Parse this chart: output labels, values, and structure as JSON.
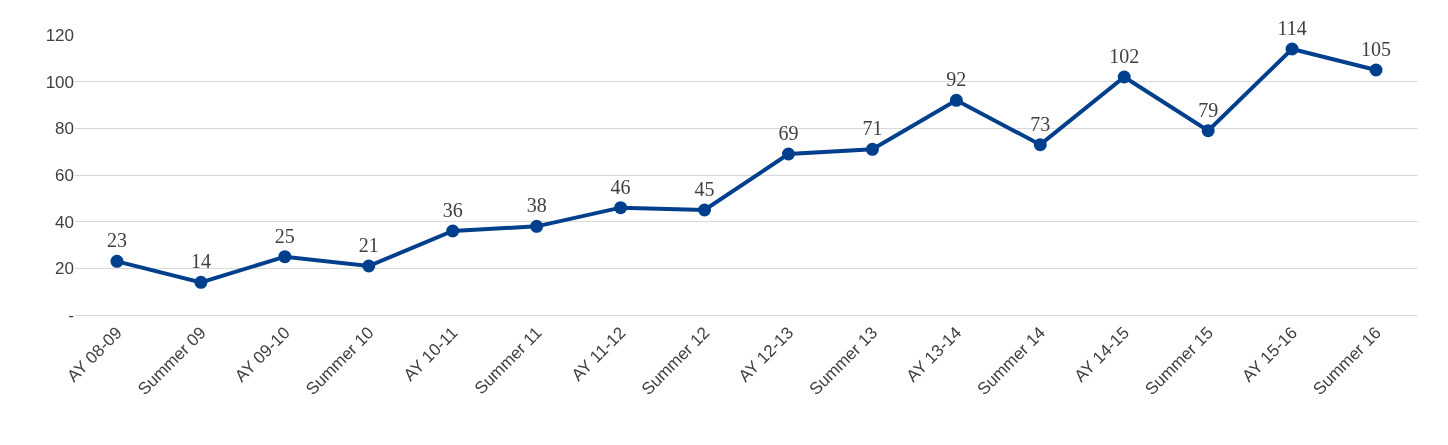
{
  "chart_data": {
    "type": "line",
    "categories": [
      "AY 08-09",
      "Summer 09",
      "AY 09-10",
      "Summer 10",
      "AY 10-11",
      "Summer 11",
      "AY 11-12",
      "Summer 12",
      "AY 12-13",
      "Summer 13",
      "AY 13-14",
      "Summer 14",
      "AY 14-15",
      "Summer 15",
      "AY 15-16",
      "Summer 16"
    ],
    "series": [
      {
        "color": "#003f8c",
        "values": [
          23,
          14,
          25,
          21,
          36,
          38,
          46,
          45,
          69,
          71,
          92,
          73,
          102,
          79,
          114,
          105
        ]
      }
    ],
    "ylim": [
      0,
      120
    ],
    "yticks": [
      {
        "value": 0,
        "label": "-"
      },
      20,
      40,
      60,
      80,
      100,
      120
    ],
    "grid": "y",
    "marker": "circle",
    "line_style": "solid",
    "data_labels": true
  }
}
